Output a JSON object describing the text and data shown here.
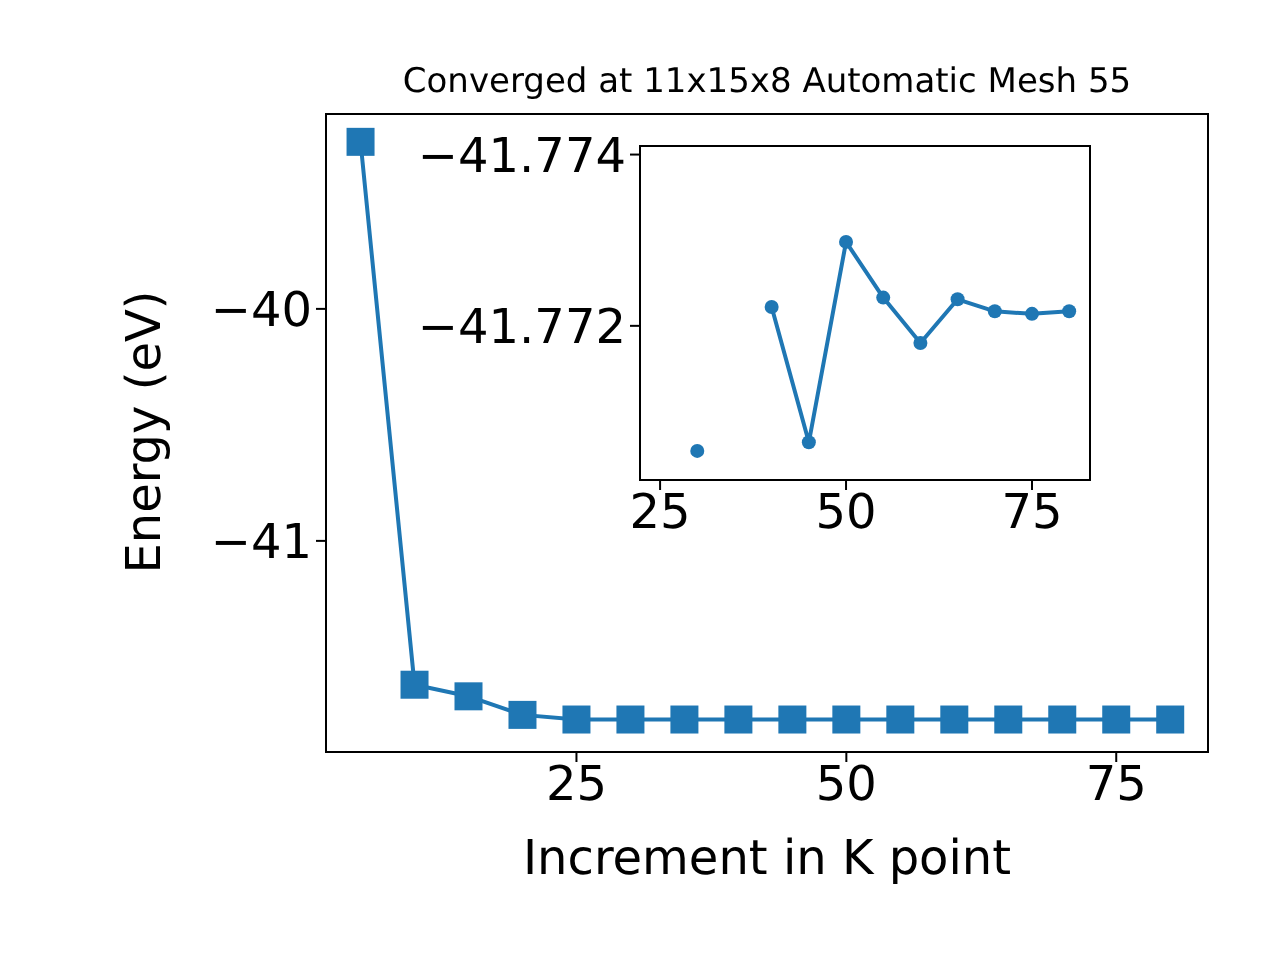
{
  "chart_data": [
    {
      "type": "line",
      "title": "Converged at 11x15x8 Automatic Mesh 55",
      "xlabel": "Increment in K point",
      "ylabel": "Energy (eV)",
      "x": [
        5,
        10,
        15,
        20,
        25,
        30,
        35,
        40,
        45,
        50,
        55,
        60,
        65,
        70,
        75,
        80
      ],
      "series": [
        {
          "color": "#1f77b4",
          "values": [
            -39.28,
            -41.62,
            -41.67,
            -41.75,
            -41.77,
            -41.77,
            -41.77,
            -41.77,
            -41.77,
            -41.77,
            -41.77,
            -41.77,
            -41.77,
            -41.77,
            -41.77,
            -41.77
          ]
        }
      ],
      "xlim": [
        1.8,
        83.5
      ],
      "ylim": [
        -41.91,
        -39.16
      ],
      "xticks": [
        25,
        50,
        75
      ],
      "yticks": [
        -41,
        -40
      ],
      "marker": "square",
      "legend": false
    },
    {
      "type": "line",
      "x": [
        30,
        35,
        40,
        45,
        50,
        55,
        60,
        65,
        70,
        75,
        80
      ],
      "series": [
        {
          "color": "#1f77b4",
          "values": [
            -41.77054,
            null,
            -41.77222,
            -41.77064,
            -41.77298,
            -41.77233,
            -41.7718,
            -41.77231,
            -41.77217,
            -41.77214,
            -41.77217
          ]
        }
      ],
      "xlim": [
        22.3,
        82.8
      ],
      "ylim": [
        -41.7702,
        -41.7741
      ],
      "xticks": [
        25,
        50,
        75
      ],
      "yticks": [
        -41.774,
        -41.772
      ],
      "marker": "circle",
      "legend": false
    }
  ]
}
